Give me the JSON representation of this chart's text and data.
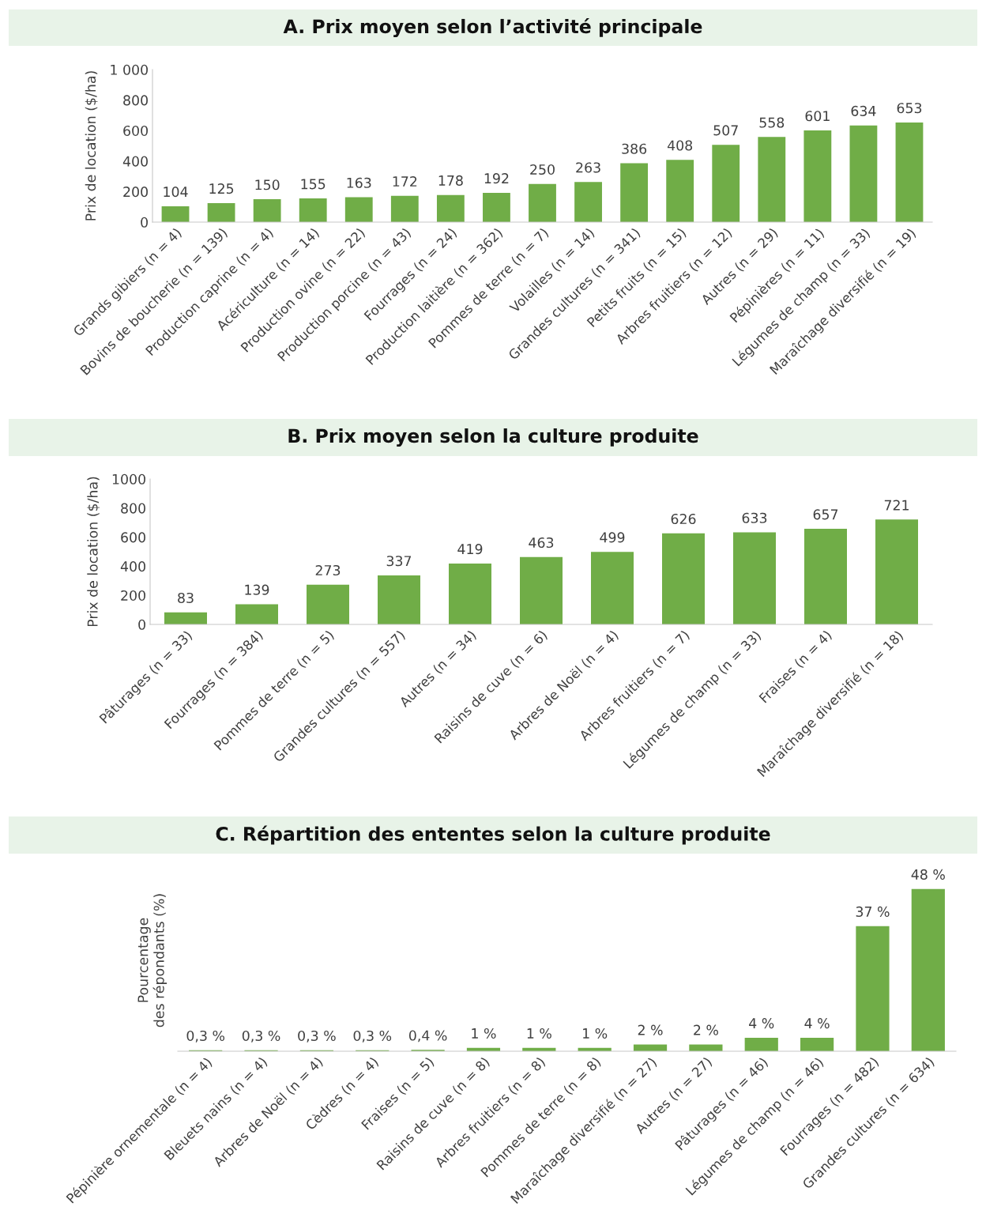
{
  "chart_data": [
    {
      "type": "bar",
      "title": "A. Prix moyen selon l’activité principale",
      "ylabel": "Prix de location ($/ha)",
      "color": "#70ad47",
      "data_labels": true,
      "categories": [
        "Grands gibiers (n = 4)",
        "Bovins de boucherie (n = 139)",
        "Production caprine (n = 4)",
        "Acériculture (n = 14)",
        "Production ovine (n = 22)",
        "Production porcine (n = 43)",
        "Fourrages (n = 24)",
        "Production laitière (n = 362)",
        "Pommes de terre (n = 7)",
        "Volailles (n = 14)",
        "Grandes cultures (n = 341)",
        "Petits fruits (n = 15)",
        "Arbres fruitiers (n = 12)",
        "Autres (n = 29)",
        "Pépinières (n = 11)",
        "Légumes de champ (n = 33)",
        "Maraîchage diversifié (n = 19)"
      ],
      "values": [
        104,
        125,
        150,
        155,
        163,
        172,
        178,
        192,
        250,
        263,
        386,
        408,
        507,
        558,
        601,
        634,
        653
      ],
      "ylim": [
        0,
        1000
      ],
      "yticks": [
        0,
        200,
        400,
        600,
        800,
        {
          "value": 1000,
          "label": "1 000"
        }
      ]
    },
    {
      "type": "bar",
      "title": "B. Prix moyen selon la culture produite",
      "ylabel": "Prix de location ($/ha)",
      "color": "#70ad47",
      "data_labels": true,
      "categories": [
        "Pâturages (n = 33)",
        "Fourrages (n = 384)",
        "Pommes de terre (n = 5)",
        "Grandes cultures (n = 557)",
        "Autres (n = 34)",
        "Raisins de cuve (n = 6)",
        "Arbres de Noël (n = 4)",
        "Arbres fruitiers (n = 7)",
        "Légumes de champ (n = 33)",
        "Fraises (n = 4)",
        "Maraîchage diversifié (n = 18)"
      ],
      "values": [
        83,
        139,
        273,
        337,
        419,
        463,
        499,
        626,
        633,
        657,
        721
      ],
      "ylim": [
        0,
        1000
      ],
      "yticks": [
        0,
        200,
        400,
        600,
        800,
        1000
      ]
    },
    {
      "type": "bar",
      "title": "C. Répartition des ententes selon la culture produite",
      "ylabel": "Pourcentage\ndes répondants (%)",
      "color": "#70ad47",
      "tick_labels": "x",
      "categories": [
        "Pépinière ornementale (n = 4)",
        "Bleuets nains (n = 4)",
        "Arbres de Noël (n = 4)",
        "Cèdres (n = 4)",
        "Fraises (n = 5)",
        "Raisins de cuve (n = 8)",
        "Arbres fruitiers (n = 8)",
        "Pommes de terre (n = 8)",
        "Maraîchage diversifié (n = 27)",
        "Autres (n = 27)",
        "Pâturages (n = 46)",
        "Légumes de champ (n = 46)",
        "Fourrages (n = 482)",
        "Grandes cultures (n = 634)"
      ],
      "values": [
        0.3,
        0.3,
        0.3,
        0.3,
        0.4,
        1,
        1,
        1,
        2,
        2,
        4,
        4,
        37,
        48
      ],
      "value_labels": [
        "0,3 %",
        "0,3 %",
        "0,3 %",
        "0,3 %",
        "0,4 %",
        "1 %",
        "1 %",
        "1 %",
        "2 %",
        "2 %",
        "4 %",
        "4 %",
        "37 %",
        "48 %"
      ]
    }
  ]
}
